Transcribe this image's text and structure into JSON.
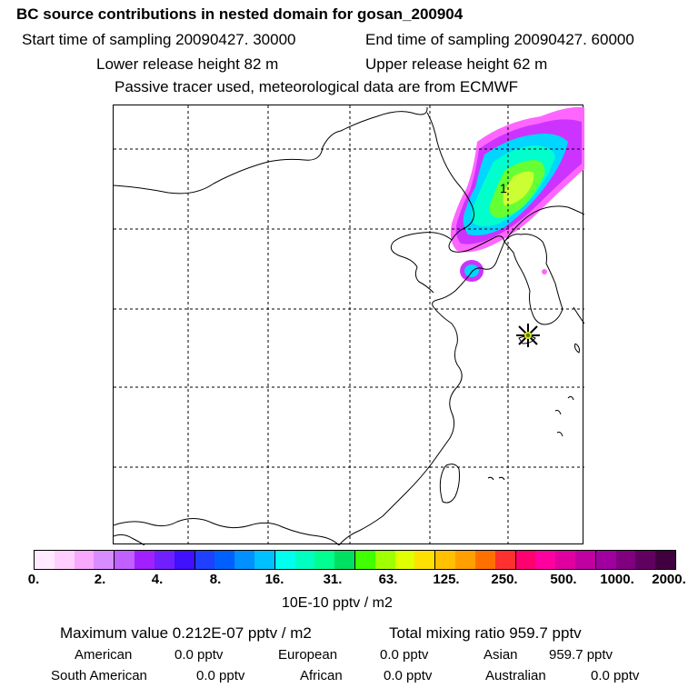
{
  "header": {
    "title": "BC  source contributions in nested domain for gosan_200904",
    "start_time": "Start time of sampling 20090427. 30000",
    "end_time": "End time of sampling 20090427. 60000",
    "lower_height": "Lower release height   82 m",
    "upper_height": "Upper release height   62 m",
    "note": "Passive tracer used, meteorological data are from ECMWF"
  },
  "map": {
    "contour_label": "1",
    "receptor_marker": "star",
    "plume_colors": [
      "#ff66ff",
      "#cc33ff",
      "#00d6ff",
      "#00ffcc",
      "#66ff33",
      "#ccff33"
    ]
  },
  "colorbar": {
    "colors": [
      "#ffeaff",
      "#ffd0ff",
      "#f8a8ff",
      "#d88cff",
      "#c060ff",
      "#a020ff",
      "#7020ff",
      "#4010ff",
      "#2040ff",
      "#0060ff",
      "#0090ff",
      "#00c0ff",
      "#00ffee",
      "#00ffc0",
      "#00ff90",
      "#00e060",
      "#40ff00",
      "#a0ff00",
      "#e0ff00",
      "#ffe000",
      "#ffc000",
      "#ffa000",
      "#ff7000",
      "#ff3030",
      "#ff0070",
      "#ff00a0",
      "#e000a0",
      "#c000a0",
      "#a000a0",
      "#800080",
      "#600060",
      "#400040"
    ],
    "dividers": [
      4,
      8,
      12,
      16,
      20,
      24,
      28
    ],
    "ticks": [
      "0.",
      "2.",
      "4.",
      "8.",
      "16.",
      "31.",
      "63.",
      "125.",
      "250.",
      "500.",
      "1000.",
      "2000."
    ],
    "unit": "10E-10 pptv / m2"
  },
  "summary": {
    "max_value": "Maximum value  0.212E-07 pptv / m2",
    "total_mixing": "Total mixing ratio      959.7 pptv",
    "regions": [
      {
        "name": "American",
        "value": "0.0 pptv"
      },
      {
        "name": "European",
        "value": "0.0 pptv"
      },
      {
        "name": "Asian",
        "value": "959.7 pptv"
      },
      {
        "name": "South American",
        "value": "0.0 pptv"
      },
      {
        "name": "African",
        "value": "0.0 pptv"
      },
      {
        "name": "Australian",
        "value": "0.0 pptv"
      }
    ]
  }
}
